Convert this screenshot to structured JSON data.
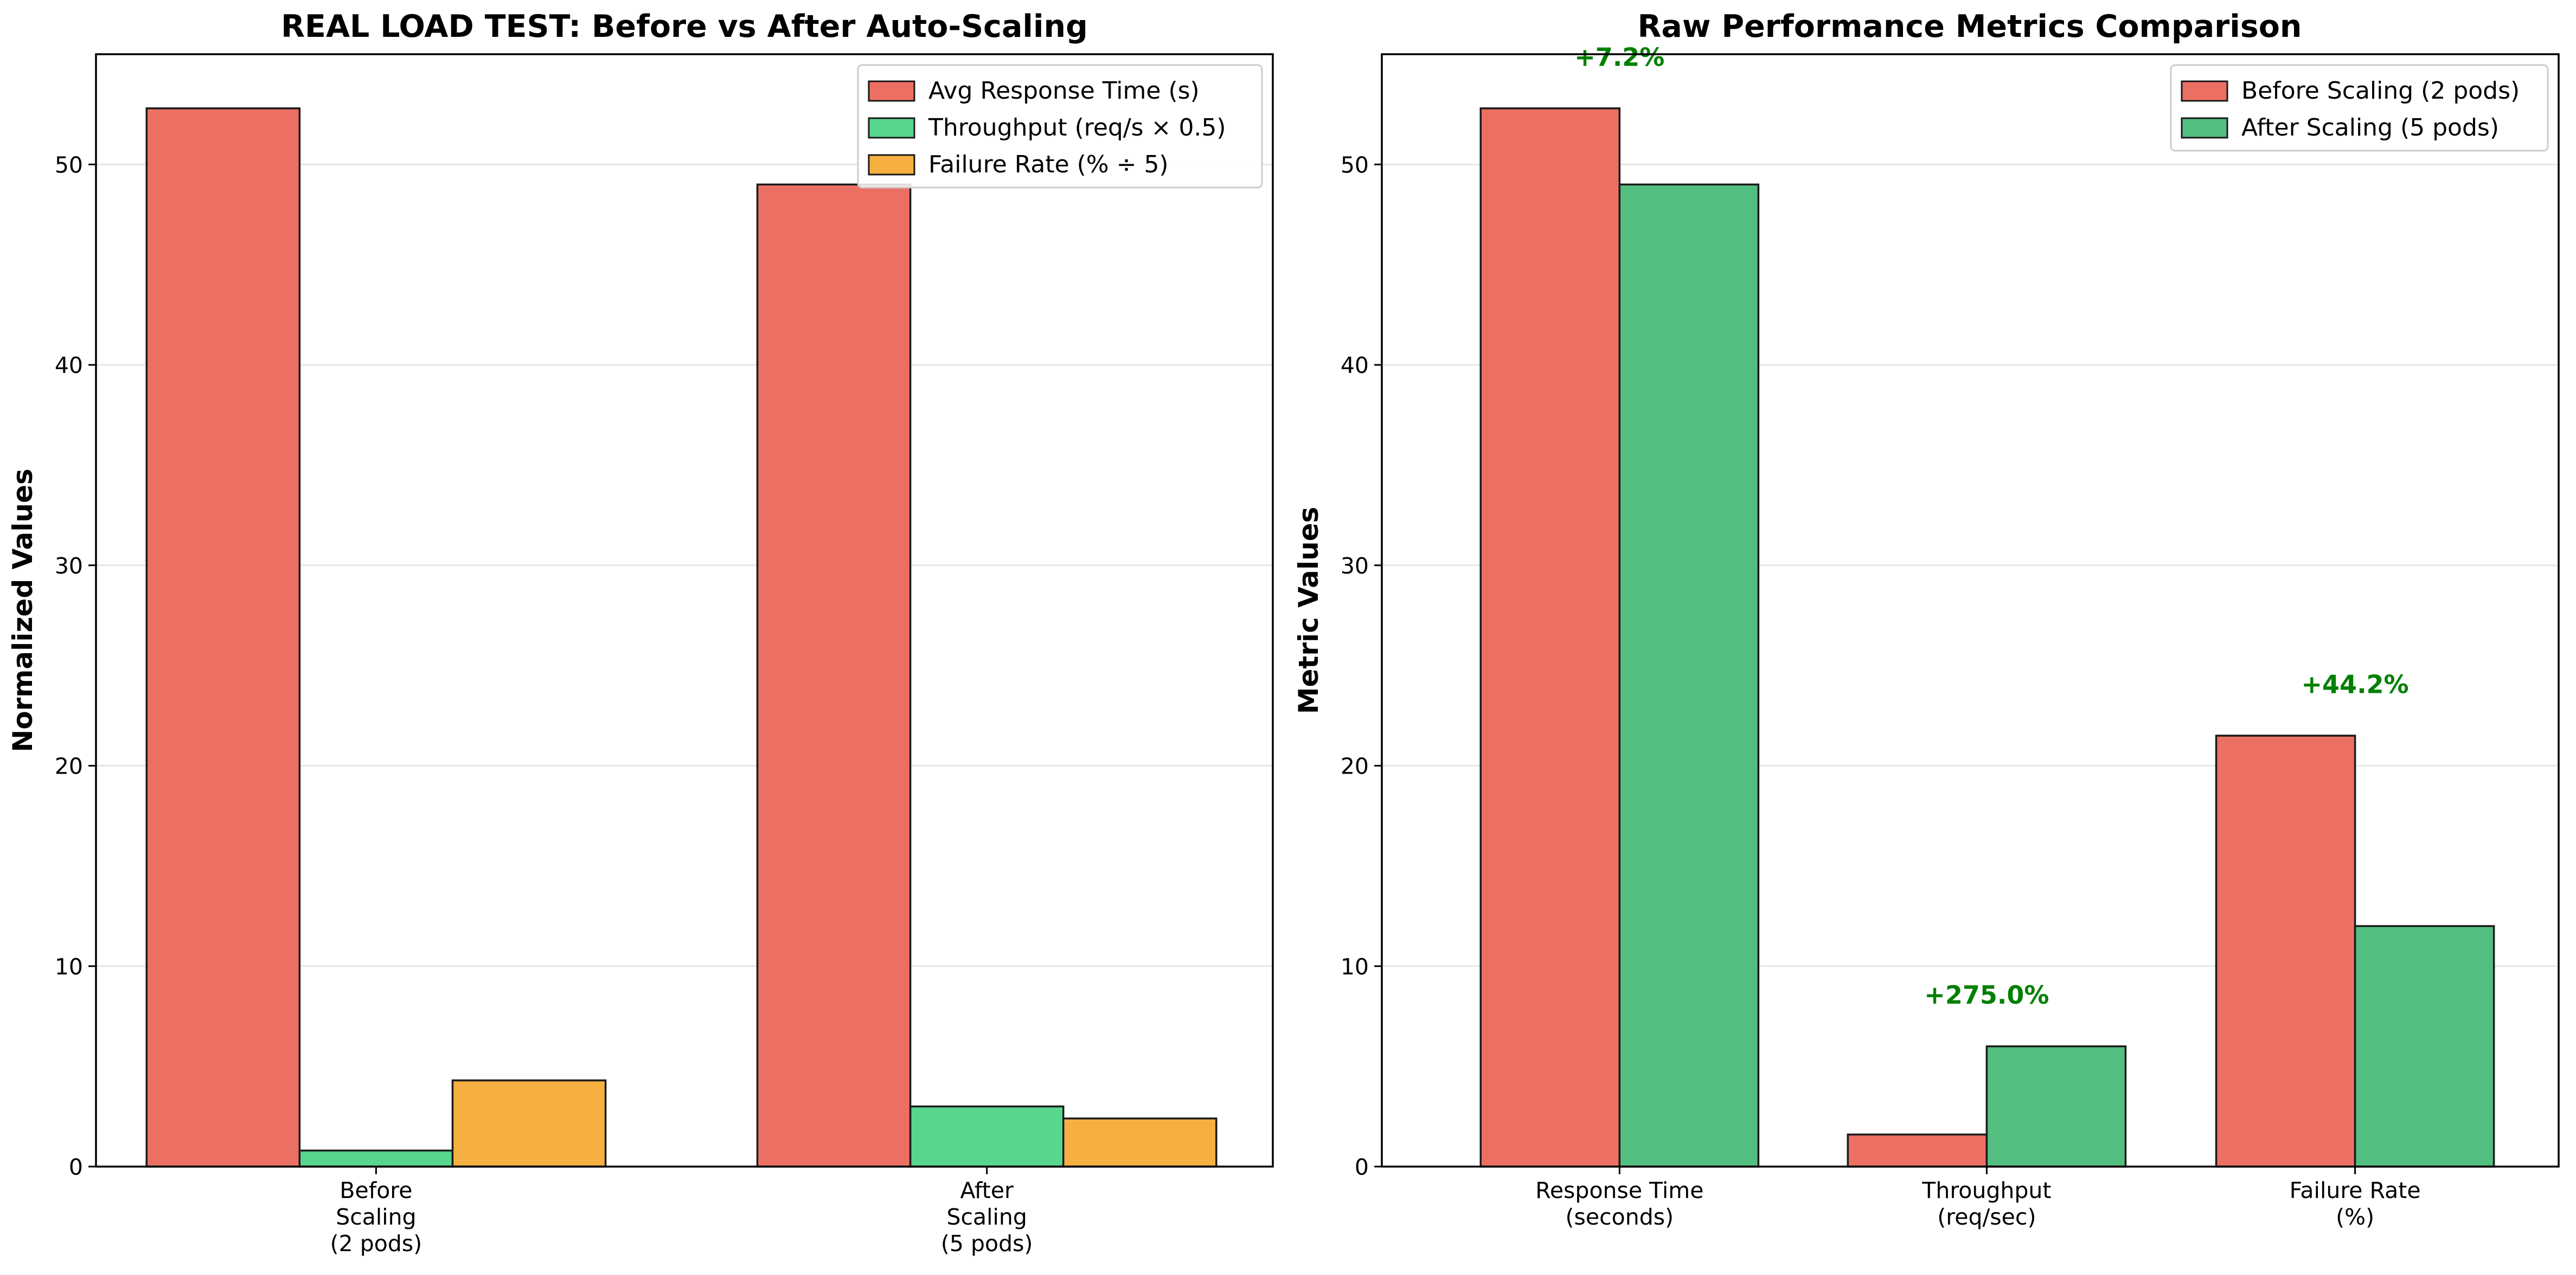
{
  "colors": {
    "red": "#EB7063",
    "green_bright": "#58D68D",
    "orange": "#F5B041",
    "green": "#52BE80",
    "annotation": "#008000",
    "grid": "#e6e6e6",
    "edge": "#1a1a1a"
  },
  "chart_data": [
    {
      "type": "bar",
      "title": "REAL LOAD TEST: Before vs After Auto-Scaling",
      "xlabel": "",
      "ylabel": "Normalized Values",
      "ylim": [
        0,
        55.5
      ],
      "yticks": [
        0,
        10,
        20,
        30,
        40,
        50
      ],
      "grid": "horizontal",
      "legend_position": "top-right",
      "categories": [
        [
          "Before",
          "Scaling",
          "(2 pods)"
        ],
        [
          "After",
          "Scaling",
          "(5 pods)"
        ]
      ],
      "series": [
        {
          "name": "Avg Response Time (s)",
          "color": "#EB7063",
          "values": [
            52.8,
            49.0
          ]
        },
        {
          "name": "Throughput (req/s × 0.5)",
          "color": "#58D68D",
          "values": [
            0.8,
            3.0
          ]
        },
        {
          "name": "Failure Rate (% ÷ 5)",
          "color": "#F5B041",
          "values": [
            4.3,
            2.4
          ]
        }
      ]
    },
    {
      "type": "bar",
      "title": "Raw Performance Metrics Comparison",
      "xlabel": "",
      "ylabel": "Metric Values",
      "ylim": [
        0,
        55.5
      ],
      "yticks": [
        0,
        10,
        20,
        30,
        40,
        50
      ],
      "grid": "horizontal",
      "legend_position": "top-right",
      "categories": [
        [
          "Response Time",
          "(seconds)"
        ],
        [
          "Throughput",
          "(req/sec)"
        ],
        [
          "Failure Rate",
          "(%)"
        ]
      ],
      "series": [
        {
          "name": "Before Scaling (2 pods)",
          "color": "#EB7063",
          "values": [
            52.8,
            1.6,
            21.5
          ]
        },
        {
          "name": "After Scaling (5 pods)",
          "color": "#52BE80",
          "values": [
            49.0,
            6.0,
            12.0
          ]
        }
      ],
      "annotations": [
        {
          "text": "+7.2%",
          "category_index": 0,
          "y": 55.3
        },
        {
          "text": "+275.0%",
          "category_index": 1,
          "y": 8.5
        },
        {
          "text": "+44.2%",
          "category_index": 2,
          "y": 24.0
        }
      ]
    }
  ]
}
